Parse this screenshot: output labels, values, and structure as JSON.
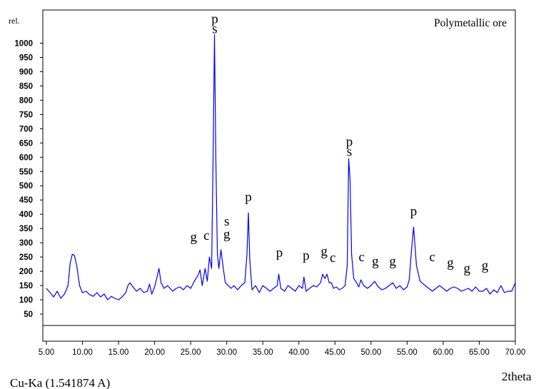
{
  "chart_data": {
    "type": "line",
    "title": "Polymetallic ore",
    "ylabel": "rel.",
    "xlabel": "2theta",
    "source_label": "Cu-Ka (1.541874 A)",
    "xlim": [
      5,
      70
    ],
    "ylim": [
      0,
      1050
    ],
    "x_ticks": [
      "5.00",
      "10.00",
      "15.00",
      "20.00",
      "25.00",
      "30.00",
      "35.00",
      "40.00",
      "45.00",
      "50.00",
      "55.00",
      "60.00",
      "65.00",
      "70.00"
    ],
    "y_ticks": [
      "50",
      "100",
      "150",
      "200",
      "250",
      "300",
      "350",
      "400",
      "450",
      "500",
      "550",
      "600",
      "650",
      "700",
      "750",
      "800",
      "850",
      "900",
      "950",
      "1000"
    ],
    "line_color": "#0000ee",
    "series": [
      {
        "x": [
          5,
          5.5,
          6,
          6.5,
          7,
          7.5,
          8,
          8.3,
          8.6,
          8.9,
          9.2,
          9.6,
          10,
          10.5,
          11,
          11.5,
          12,
          12.5,
          13,
          13.5,
          14,
          14.5,
          15,
          15.5,
          16,
          16.3,
          16.6,
          17,
          17.5,
          18,
          18.5,
          19,
          19.3,
          19.6,
          20,
          20.3,
          20.6,
          20.9,
          21.3,
          21.8,
          22.5,
          23,
          23.5,
          24,
          24.5,
          25,
          25.5,
          26,
          26.3,
          26.6,
          27,
          27.3,
          27.6,
          27.9,
          28.1,
          28.3,
          28.5,
          28.7,
          28.9,
          29.2,
          29.5,
          29.8,
          30.2,
          30.6,
          31,
          31.5,
          32,
          32.5,
          32.8,
          33,
          33.2,
          33.5,
          34,
          34.5,
          35,
          35.5,
          36,
          36.5,
          37,
          37.2,
          37.5,
          38,
          38.5,
          39,
          39.5,
          40,
          40.5,
          40.7,
          41,
          41.5,
          42,
          42.5,
          43,
          43.3,
          43.6,
          43.9,
          44.2,
          44.5,
          44.8,
          45.2,
          45.6,
          46,
          46.4,
          46.7,
          46.9,
          47.1,
          47.3,
          47.6,
          48,
          48.3,
          48.6,
          49,
          49.5,
          50,
          50.5,
          51,
          51.5,
          52,
          52.5,
          53,
          53.5,
          54,
          54.5,
          55,
          55.3,
          55.6,
          55.9,
          56.3,
          56.8,
          57.5,
          58,
          58.5,
          59,
          59.5,
          60,
          60.5,
          61,
          61.5,
          62,
          62.5,
          63,
          63.5,
          64,
          64.5,
          65,
          65.5,
          66,
          66.5,
          67,
          67.5,
          68,
          68.5,
          69,
          69.5,
          70
        ],
        "values": [
          140,
          125,
          110,
          130,
          105,
          120,
          150,
          230,
          260,
          255,
          220,
          150,
          125,
          130,
          118,
          112,
          125,
          110,
          120,
          100,
          112,
          105,
          100,
          110,
          125,
          150,
          160,
          145,
          130,
          140,
          125,
          130,
          155,
          120,
          145,
          175,
          210,
          160,
          140,
          150,
          130,
          140,
          145,
          135,
          150,
          140,
          165,
          185,
          205,
          150,
          210,
          165,
          250,
          210,
          580,
          1030,
          580,
          260,
          210,
          275,
          215,
          160,
          150,
          140,
          150,
          135,
          150,
          160,
          260,
          405,
          240,
          135,
          150,
          125,
          150,
          140,
          130,
          140,
          150,
          190,
          140,
          130,
          150,
          140,
          130,
          150,
          140,
          180,
          130,
          140,
          150,
          145,
          160,
          190,
          175,
          190,
          160,
          160,
          140,
          145,
          135,
          140,
          150,
          220,
          595,
          520,
          260,
          175,
          160,
          145,
          170,
          150,
          140,
          150,
          165,
          145,
          135,
          140,
          150,
          160,
          140,
          150,
          135,
          145,
          170,
          270,
          355,
          220,
          165,
          150,
          140,
          130,
          140,
          150,
          140,
          130,
          140,
          145,
          140,
          130,
          135,
          140,
          130,
          145,
          130,
          130,
          140,
          120,
          135,
          125,
          150,
          125,
          130,
          130,
          160
        ]
      }
    ],
    "annotations": [
      {
        "text": "p",
        "x": 28.35,
        "y": 1070
      },
      {
        "text": "s",
        "x": 28.35,
        "y": 1035
      },
      {
        "text": "g",
        "x": 25.4,
        "y": 305
      },
      {
        "text": "c",
        "x": 27.2,
        "y": 310
      },
      {
        "text": "s",
        "x": 30.0,
        "y": 360
      },
      {
        "text": "g",
        "x": 30.0,
        "y": 315
      },
      {
        "text": "p",
        "x": 33.0,
        "y": 445
      },
      {
        "text": "p",
        "x": 37.3,
        "y": 250
      },
      {
        "text": "p",
        "x": 41.0,
        "y": 240
      },
      {
        "text": "g",
        "x": 43.5,
        "y": 255
      },
      {
        "text": "c",
        "x": 44.7,
        "y": 233
      },
      {
        "text": "p",
        "x": 47.0,
        "y": 640
      },
      {
        "text": "s",
        "x": 47.0,
        "y": 605
      },
      {
        "text": "c",
        "x": 48.7,
        "y": 235
      },
      {
        "text": "g",
        "x": 50.6,
        "y": 220
      },
      {
        "text": "g",
        "x": 53.0,
        "y": 220
      },
      {
        "text": "p",
        "x": 55.9,
        "y": 395
      },
      {
        "text": "c",
        "x": 58.5,
        "y": 235
      },
      {
        "text": "g",
        "x": 61.0,
        "y": 215
      },
      {
        "text": "g",
        "x": 63.3,
        "y": 195
      },
      {
        "text": "g",
        "x": 65.8,
        "y": 205
      }
    ]
  }
}
